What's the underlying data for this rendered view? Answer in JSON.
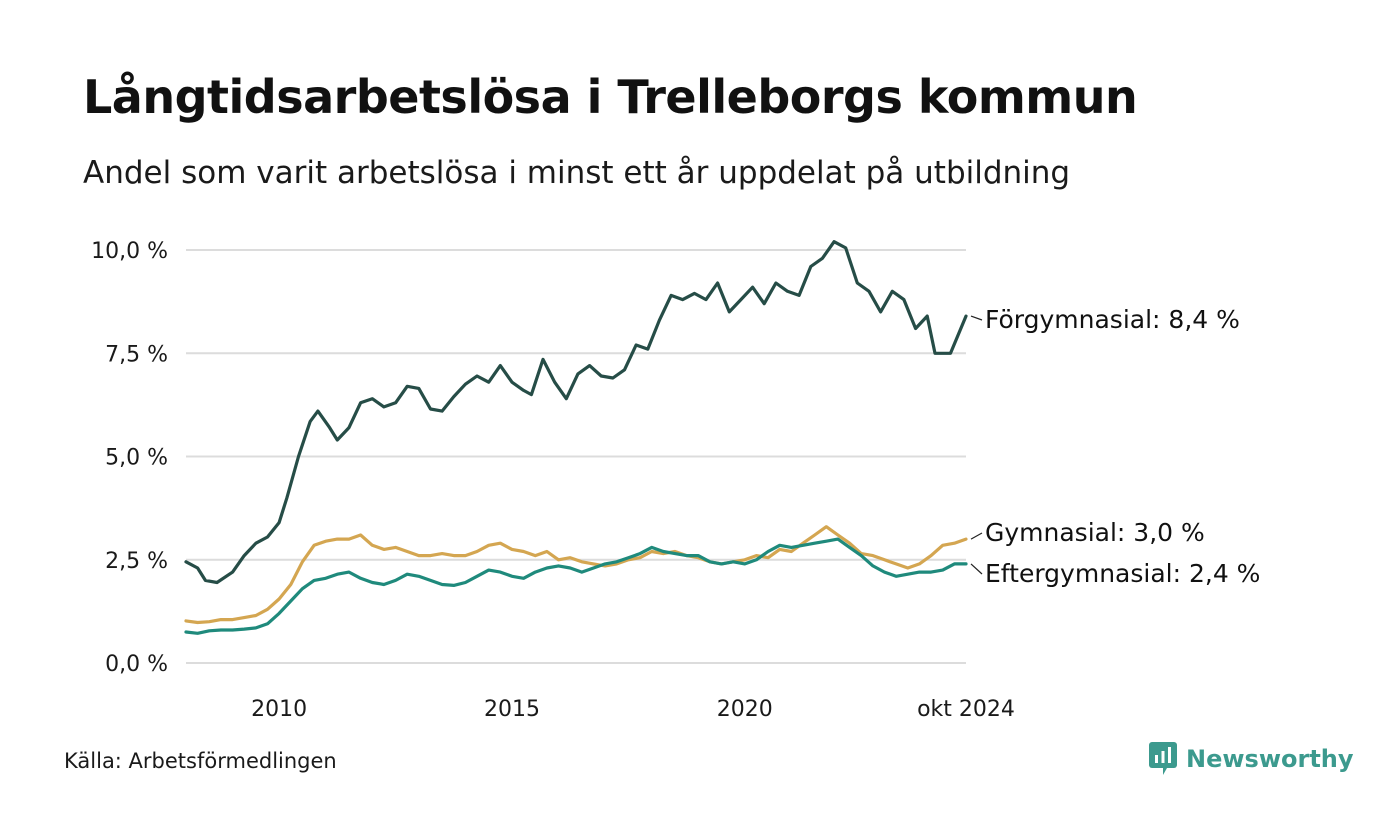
{
  "title": "Långtidsarbetslösa i Trelleborgs kommun",
  "subtitle": "Andel som varit arbetslösa i minst ett år uppdelat på utbildning",
  "source": "Källa: Arbetsförmedlingen",
  "brand": "Newsworthy",
  "colors": {
    "forgymnasial": "#264d47",
    "gymnasial": "#d4a651",
    "eftergymnasial": "#1f8a7c",
    "grid": "#dcdcdc",
    "brand": "#3c9a8e"
  },
  "chart_data": {
    "type": "line",
    "title": "Långtidsarbetslösa i Trelleborgs kommun",
    "subtitle": "Andel som varit arbetslösa i minst ett år uppdelat på utbildning",
    "xlabel": "",
    "ylabel": "",
    "ylim": [
      0,
      10
    ],
    "xlim": [
      "2008-01",
      "2024-10"
    ],
    "grid": true,
    "legend": "end-of-line labels",
    "x_ticks": [
      {
        "x": "2010-01",
        "label": "2010"
      },
      {
        "x": "2015-01",
        "label": "2015"
      },
      {
        "x": "2020-01",
        "label": "2020"
      },
      {
        "x": "2024-10",
        "label": "okt 2024"
      }
    ],
    "y_ticks": [
      {
        "y": 0,
        "label": "0,0 %"
      },
      {
        "y": 2.5,
        "label": "2,5 %"
      },
      {
        "y": 5,
        "label": "5,0 %"
      },
      {
        "y": 7.5,
        "label": "7,5 %"
      },
      {
        "y": 10,
        "label": "10,0 %"
      }
    ],
    "series": [
      {
        "name": "Förgymnasial",
        "end_label": "Förgymnasial: 8,4 %",
        "color": "#264d47",
        "points": [
          [
            "2008-01",
            2.45
          ],
          [
            "2008-04",
            2.3
          ],
          [
            "2008-06",
            2.0
          ],
          [
            "2008-09",
            1.95
          ],
          [
            "2009-01",
            2.2
          ],
          [
            "2009-04",
            2.6
          ],
          [
            "2009-07",
            2.9
          ],
          [
            "2009-10",
            3.05
          ],
          [
            "2010-01",
            3.4
          ],
          [
            "2010-03",
            4.0
          ],
          [
            "2010-06",
            5.0
          ],
          [
            "2010-09",
            5.85
          ],
          [
            "2010-11",
            6.1
          ],
          [
            "2011-02",
            5.7
          ],
          [
            "2011-04",
            5.4
          ],
          [
            "2011-07",
            5.7
          ],
          [
            "2011-10",
            6.3
          ],
          [
            "2012-01",
            6.4
          ],
          [
            "2012-04",
            6.2
          ],
          [
            "2012-07",
            6.3
          ],
          [
            "2012-10",
            6.7
          ],
          [
            "2013-01",
            6.65
          ],
          [
            "2013-04",
            6.15
          ],
          [
            "2013-07",
            6.1
          ],
          [
            "2013-10",
            6.45
          ],
          [
            "2014-01",
            6.75
          ],
          [
            "2014-04",
            6.95
          ],
          [
            "2014-07",
            6.8
          ],
          [
            "2014-10",
            7.2
          ],
          [
            "2015-01",
            6.8
          ],
          [
            "2015-04",
            6.6
          ],
          [
            "2015-06",
            6.5
          ],
          [
            "2015-09",
            7.35
          ],
          [
            "2015-12",
            6.8
          ],
          [
            "2016-03",
            6.4
          ],
          [
            "2016-06",
            7.0
          ],
          [
            "2016-09",
            7.2
          ],
          [
            "2016-12",
            6.95
          ],
          [
            "2017-03",
            6.9
          ],
          [
            "2017-06",
            7.1
          ],
          [
            "2017-09",
            7.7
          ],
          [
            "2017-12",
            7.6
          ],
          [
            "2018-03",
            8.3
          ],
          [
            "2018-06",
            8.9
          ],
          [
            "2018-09",
            8.8
          ],
          [
            "2018-12",
            8.95
          ],
          [
            "2019-03",
            8.8
          ],
          [
            "2019-06",
            9.2
          ],
          [
            "2019-09",
            8.5
          ],
          [
            "2019-12",
            8.8
          ],
          [
            "2020-03",
            9.1
          ],
          [
            "2020-06",
            8.7
          ],
          [
            "2020-09",
            9.2
          ],
          [
            "2020-12",
            9.0
          ],
          [
            "2021-03",
            8.9
          ],
          [
            "2021-06",
            9.6
          ],
          [
            "2021-09",
            9.8
          ],
          [
            "2021-12",
            10.2
          ],
          [
            "2022-03",
            10.05
          ],
          [
            "2022-06",
            9.2
          ],
          [
            "2022-09",
            9.0
          ],
          [
            "2022-12",
            8.5
          ],
          [
            "2023-03",
            9.0
          ],
          [
            "2023-06",
            8.8
          ],
          [
            "2023-09",
            8.1
          ],
          [
            "2023-12",
            8.4
          ],
          [
            "2024-02",
            7.5
          ],
          [
            "2024-06",
            7.5
          ],
          [
            "2024-10",
            8.4
          ]
        ]
      },
      {
        "name": "Gymnasial",
        "end_label": "Gymnasial: 3,0 %",
        "color": "#d4a651",
        "points": [
          [
            "2008-01",
            1.02
          ],
          [
            "2008-04",
            0.98
          ],
          [
            "2008-07",
            1.0
          ],
          [
            "2008-10",
            1.05
          ],
          [
            "2009-01",
            1.05
          ],
          [
            "2009-04",
            1.1
          ],
          [
            "2009-07",
            1.15
          ],
          [
            "2009-10",
            1.3
          ],
          [
            "2010-01",
            1.55
          ],
          [
            "2010-04",
            1.9
          ],
          [
            "2010-07",
            2.45
          ],
          [
            "2010-10",
            2.85
          ],
          [
            "2011-01",
            2.95
          ],
          [
            "2011-04",
            3.0
          ],
          [
            "2011-07",
            3.0
          ],
          [
            "2011-10",
            3.1
          ],
          [
            "2012-01",
            2.85
          ],
          [
            "2012-04",
            2.75
          ],
          [
            "2012-07",
            2.8
          ],
          [
            "2012-10",
            2.7
          ],
          [
            "2013-01",
            2.6
          ],
          [
            "2013-04",
            2.6
          ],
          [
            "2013-07",
            2.65
          ],
          [
            "2013-10",
            2.6
          ],
          [
            "2014-01",
            2.6
          ],
          [
            "2014-04",
            2.7
          ],
          [
            "2014-07",
            2.85
          ],
          [
            "2014-10",
            2.9
          ],
          [
            "2015-01",
            2.75
          ],
          [
            "2015-04",
            2.7
          ],
          [
            "2015-07",
            2.6
          ],
          [
            "2015-10",
            2.7
          ],
          [
            "2016-01",
            2.5
          ],
          [
            "2016-04",
            2.55
          ],
          [
            "2016-07",
            2.45
          ],
          [
            "2016-10",
            2.4
          ],
          [
            "2017-01",
            2.35
          ],
          [
            "2017-04",
            2.4
          ],
          [
            "2017-07",
            2.5
          ],
          [
            "2017-10",
            2.55
          ],
          [
            "2018-01",
            2.7
          ],
          [
            "2018-04",
            2.65
          ],
          [
            "2018-07",
            2.7
          ],
          [
            "2018-10",
            2.6
          ],
          [
            "2019-01",
            2.55
          ],
          [
            "2019-04",
            2.45
          ],
          [
            "2019-07",
            2.4
          ],
          [
            "2019-10",
            2.45
          ],
          [
            "2020-01",
            2.5
          ],
          [
            "2020-04",
            2.6
          ],
          [
            "2020-07",
            2.55
          ],
          [
            "2020-10",
            2.75
          ],
          [
            "2021-01",
            2.7
          ],
          [
            "2021-04",
            2.9
          ],
          [
            "2021-07",
            3.1
          ],
          [
            "2021-10",
            3.3
          ],
          [
            "2022-01",
            3.1
          ],
          [
            "2022-04",
            2.9
          ],
          [
            "2022-07",
            2.65
          ],
          [
            "2022-10",
            2.6
          ],
          [
            "2023-01",
            2.5
          ],
          [
            "2023-04",
            2.4
          ],
          [
            "2023-07",
            2.3
          ],
          [
            "2023-10",
            2.4
          ],
          [
            "2024-01",
            2.6
          ],
          [
            "2024-04",
            2.85
          ],
          [
            "2024-07",
            2.9
          ],
          [
            "2024-10",
            3.0
          ]
        ]
      },
      {
        "name": "Eftergymnasial",
        "end_label": "Eftergymnasial: 2,4 %",
        "color": "#1f8a7c",
        "points": [
          [
            "2008-01",
            0.75
          ],
          [
            "2008-04",
            0.72
          ],
          [
            "2008-07",
            0.78
          ],
          [
            "2008-10",
            0.8
          ],
          [
            "2009-01",
            0.8
          ],
          [
            "2009-04",
            0.82
          ],
          [
            "2009-07",
            0.85
          ],
          [
            "2009-10",
            0.95
          ],
          [
            "2010-01",
            1.2
          ],
          [
            "2010-04",
            1.5
          ],
          [
            "2010-07",
            1.8
          ],
          [
            "2010-10",
            2.0
          ],
          [
            "2011-01",
            2.05
          ],
          [
            "2011-04",
            2.15
          ],
          [
            "2011-07",
            2.2
          ],
          [
            "2011-10",
            2.05
          ],
          [
            "2012-01",
            1.95
          ],
          [
            "2012-04",
            1.9
          ],
          [
            "2012-07",
            2.0
          ],
          [
            "2012-10",
            2.15
          ],
          [
            "2013-01",
            2.1
          ],
          [
            "2013-04",
            2.0
          ],
          [
            "2013-07",
            1.9
          ],
          [
            "2013-10",
            1.88
          ],
          [
            "2014-01",
            1.95
          ],
          [
            "2014-04",
            2.1
          ],
          [
            "2014-07",
            2.25
          ],
          [
            "2014-10",
            2.2
          ],
          [
            "2015-01",
            2.1
          ],
          [
            "2015-04",
            2.05
          ],
          [
            "2015-07",
            2.2
          ],
          [
            "2015-10",
            2.3
          ],
          [
            "2016-01",
            2.35
          ],
          [
            "2016-04",
            2.3
          ],
          [
            "2016-07",
            2.2
          ],
          [
            "2016-10",
            2.3
          ],
          [
            "2017-01",
            2.4
          ],
          [
            "2017-04",
            2.45
          ],
          [
            "2017-07",
            2.55
          ],
          [
            "2017-10",
            2.65
          ],
          [
            "2018-01",
            2.8
          ],
          [
            "2018-04",
            2.7
          ],
          [
            "2018-07",
            2.65
          ],
          [
            "2018-10",
            2.6
          ],
          [
            "2019-01",
            2.6
          ],
          [
            "2019-04",
            2.45
          ],
          [
            "2019-07",
            2.4
          ],
          [
            "2019-10",
            2.45
          ],
          [
            "2020-01",
            2.4
          ],
          [
            "2020-04",
            2.5
          ],
          [
            "2020-07",
            2.7
          ],
          [
            "2020-10",
            2.85
          ],
          [
            "2021-01",
            2.8
          ],
          [
            "2021-04",
            2.85
          ],
          [
            "2021-07",
            2.9
          ],
          [
            "2021-10",
            2.95
          ],
          [
            "2022-01",
            3.0
          ],
          [
            "2022-04",
            2.8
          ],
          [
            "2022-07",
            2.6
          ],
          [
            "2022-10",
            2.35
          ],
          [
            "2023-01",
            2.2
          ],
          [
            "2023-04",
            2.1
          ],
          [
            "2023-07",
            2.15
          ],
          [
            "2023-10",
            2.2
          ],
          [
            "2024-01",
            2.2
          ],
          [
            "2024-04",
            2.25
          ],
          [
            "2024-07",
            2.4
          ],
          [
            "2024-10",
            2.4
          ]
        ]
      }
    ]
  }
}
